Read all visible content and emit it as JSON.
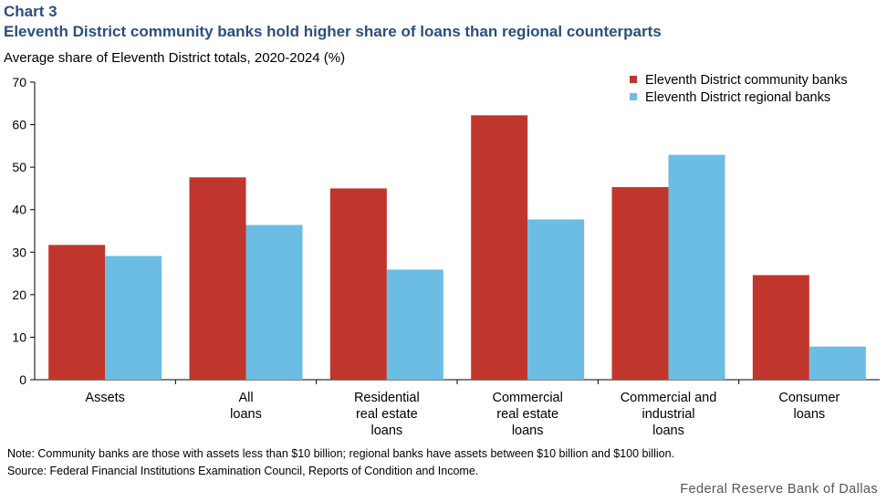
{
  "chart_number": "Chart 3",
  "footnotes": {
    "note": "Note: Community  banks are those with assets less than $10 billion; regional banks have assets between  $10 billion and $100 billion.",
    "source": "Source: Federal Financial Institutions Examination  Council, Reports of Condition and Income."
  },
  "attribution": "Federal Reserve Bank of Dallas",
  "colors": {
    "community": "#c0362c",
    "regional": "#6cbde3",
    "title": "#2a4f7f"
  },
  "chart_data": {
    "type": "bar",
    "title": "Eleventh District community banks hold higher share of loans than regional counterparts",
    "subtitle": "Average share of Eleventh  District totals, 2020-2024 (%)",
    "categories": [
      [
        "Assets"
      ],
      [
        "All",
        "loans"
      ],
      [
        "Residential",
        "real estate",
        "loans"
      ],
      [
        "Commercial",
        "real estate",
        "loans"
      ],
      [
        "Commercial and",
        "industrial",
        "loans"
      ],
      [
        "Consumer",
        "loans"
      ]
    ],
    "series": [
      {
        "name": "Eleventh District community banks",
        "values": [
          31.7,
          47.6,
          45.0,
          62.2,
          45.3,
          24.6
        ]
      },
      {
        "name": "Eleventh District regional banks",
        "values": [
          29.1,
          36.4,
          25.9,
          37.7,
          52.9,
          7.8
        ]
      }
    ],
    "ylim": [
      0,
      70
    ],
    "yticks": [
      0,
      10,
      20,
      30,
      40,
      50,
      60,
      70
    ],
    "grid": false,
    "legend_position": "top-right"
  }
}
